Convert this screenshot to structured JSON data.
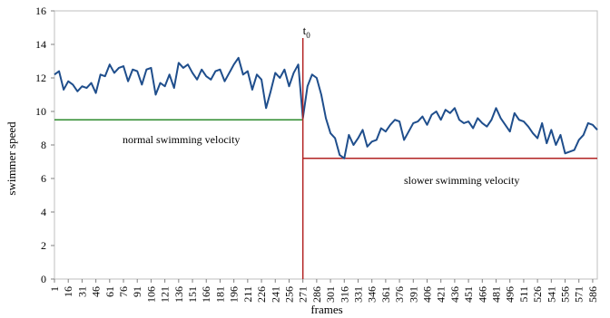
{
  "chart_data": {
    "type": "line",
    "xlabel": "frames",
    "ylabel": "swimmer speed",
    "ylim": [
      0,
      16
    ],
    "yticks": [
      0,
      2,
      4,
      6,
      8,
      10,
      12,
      14,
      16
    ],
    "xlim": [
      1,
      591
    ],
    "xticks": [
      1,
      16,
      31,
      46,
      61,
      76,
      91,
      106,
      121,
      136,
      151,
      166,
      181,
      196,
      211,
      226,
      241,
      256,
      271,
      286,
      301,
      316,
      331,
      346,
      361,
      376,
      391,
      406,
      421,
      436,
      451,
      466,
      481,
      496,
      511,
      526,
      541,
      556,
      571,
      586
    ],
    "grid": false,
    "series": [
      {
        "color": "#1f4e8c",
        "x": [
          1,
          6,
          11,
          16,
          21,
          26,
          31,
          36,
          41,
          46,
          51,
          56,
          61,
          66,
          71,
          76,
          81,
          86,
          91,
          96,
          101,
          106,
          111,
          116,
          121,
          126,
          131,
          136,
          141,
          146,
          151,
          156,
          161,
          166,
          171,
          176,
          181,
          186,
          191,
          196,
          201,
          206,
          211,
          216,
          221,
          226,
          231,
          236,
          241,
          246,
          251,
          256,
          261,
          266,
          271,
          276,
          281,
          286,
          291,
          296,
          301,
          306,
          311,
          316,
          321,
          326,
          331,
          336,
          341,
          346,
          351,
          356,
          361,
          366,
          371,
          376,
          381,
          386,
          391,
          396,
          401,
          406,
          411,
          416,
          421,
          426,
          431,
          436,
          441,
          446,
          451,
          456,
          461,
          466,
          471,
          476,
          481,
          486,
          491,
          496,
          501,
          506,
          511,
          516,
          521,
          526,
          531,
          536,
          541,
          546,
          551,
          556,
          561,
          566,
          571,
          576,
          581,
          586,
          591
        ],
        "y": [
          12.2,
          12.4,
          11.3,
          11.8,
          11.6,
          11.2,
          11.5,
          11.4,
          11.7,
          11.1,
          12.2,
          12.1,
          12.8,
          12.3,
          12.6,
          12.7,
          11.8,
          12.5,
          12.4,
          11.6,
          12.5,
          12.6,
          11.0,
          11.7,
          11.5,
          12.2,
          11.4,
          12.9,
          12.6,
          12.8,
          12.3,
          11.9,
          12.5,
          12.1,
          11.9,
          12.4,
          12.5,
          11.8,
          12.3,
          12.8,
          13.2,
          12.2,
          12.4,
          11.3,
          12.2,
          11.9,
          10.2,
          11.2,
          12.3,
          12.0,
          12.5,
          11.5,
          12.3,
          12.8,
          9.6,
          11.5,
          12.2,
          12.0,
          11.0,
          9.6,
          8.7,
          8.4,
          7.4,
          7.2,
          8.6,
          8.0,
          8.4,
          8.9,
          7.9,
          8.2,
          8.3,
          9.0,
          8.8,
          9.2,
          9.5,
          9.4,
          8.3,
          8.8,
          9.3,
          9.4,
          9.7,
          9.2,
          9.8,
          10.0,
          9.5,
          10.1,
          9.9,
          10.2,
          9.5,
          9.3,
          9.4,
          9.0,
          9.6,
          9.3,
          9.1,
          9.5,
          10.2,
          9.6,
          9.2,
          8.8,
          9.9,
          9.5,
          9.4,
          9.1,
          8.7,
          8.4,
          9.3,
          8.1,
          8.9,
          8.0,
          8.6,
          7.5,
          7.6,
          7.7,
          8.3,
          8.6,
          9.3,
          9.2,
          8.9
        ]
      }
    ],
    "event_line": {
      "x": 271,
      "label": "t",
      "label_subscript": "0",
      "color": "#b22222"
    },
    "reference_lines": [
      {
        "label": "normal swimming velocity",
        "y": 9.5,
        "x_from": 1,
        "x_to": 271,
        "color": "#2e8b2e"
      },
      {
        "label": "slower swimming velocity",
        "y": 7.2,
        "x_from": 271,
        "x_to": 591,
        "color": "#b22222"
      }
    ]
  }
}
